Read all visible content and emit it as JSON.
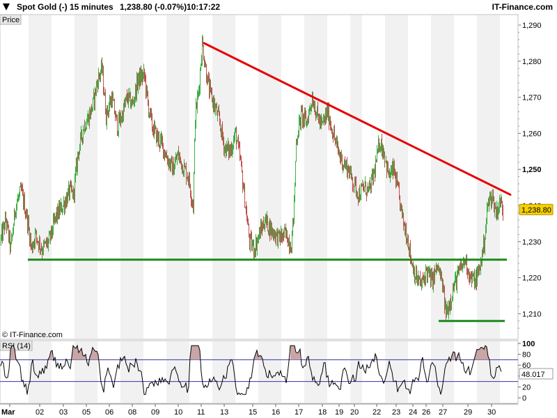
{
  "header": {
    "instrument": "Spot Gold (-)",
    "timeframe": "15 minutes",
    "last_quote": "1,238.80 (-0.07%)",
    "time": "10:17:22",
    "brand": "IT-Finance.com"
  },
  "panels": {
    "price_label": "Price",
    "copyright": "© IT-Finance.com",
    "rsi_label": "RSI (14)"
  },
  "colors": {
    "up_candle": "#3cb043",
    "down_candle": "#c0504d",
    "trendline": "#e60000",
    "support": "#1a8a1a",
    "rsi_line": "#000000",
    "rsi_band": "#3333aa",
    "price_tag": "#f5d000"
  },
  "chart_data": [
    {
      "type": "candlestick",
      "xlabel": "",
      "ylabel": "",
      "ylim": [
        1205,
        1292
      ],
      "y_ticks": [
        "1,290",
        "1,280",
        "1,270",
        "1,260",
        "1,250",
        "1,240",
        "1,230",
        "1,220",
        "1,210"
      ],
      "x_tick_labels": [
        "Mar",
        "02",
        "03",
        "05",
        "06",
        "08",
        "09",
        "10",
        "11",
        "13",
        "15",
        "16",
        "17",
        "18",
        "19",
        "20",
        "22",
        "23",
        "24",
        "26",
        "27",
        "29",
        "30"
      ],
      "last_price_tag": "1,238.80",
      "path_anchors": [
        [
          0,
          1230
        ],
        [
          8,
          1236
        ],
        [
          15,
          1228
        ],
        [
          22,
          1240
        ],
        [
          30,
          1244
        ],
        [
          38,
          1237
        ],
        [
          45,
          1228
        ],
        [
          50,
          1232
        ],
        [
          60,
          1228
        ],
        [
          70,
          1230
        ],
        [
          80,
          1237
        ],
        [
          90,
          1240
        ],
        [
          100,
          1244
        ],
        [
          105,
          1243
        ],
        [
          112,
          1255
        ],
        [
          120,
          1262
        ],
        [
          128,
          1265
        ],
        [
          133,
          1268
        ],
        [
          140,
          1275
        ],
        [
          146,
          1278
        ],
        [
          152,
          1265
        ],
        [
          160,
          1270
        ],
        [
          168,
          1262
        ],
        [
          175,
          1265
        ],
        [
          182,
          1270
        ],
        [
          190,
          1268
        ],
        [
          198,
          1275
        ],
        [
          207,
          1276
        ],
        [
          212,
          1268
        ],
        [
          218,
          1262
        ],
        [
          225,
          1259
        ],
        [
          232,
          1257
        ],
        [
          240,
          1253
        ],
        [
          248,
          1250
        ],
        [
          255,
          1254
        ],
        [
          262,
          1251
        ],
        [
          270,
          1248
        ],
        [
          277,
          1240
        ],
        [
          280,
          1265
        ],
        [
          285,
          1272
        ],
        [
          290,
          1285
        ],
        [
          295,
          1278
        ],
        [
          300,
          1272
        ],
        [
          307,
          1268
        ],
        [
          315,
          1263
        ],
        [
          322,
          1256
        ],
        [
          330,
          1255
        ],
        [
          338,
          1260
        ],
        [
          345,
          1252
        ],
        [
          352,
          1240
        ],
        [
          358,
          1230
        ],
        [
          365,
          1228
        ],
        [
          372,
          1232
        ],
        [
          380,
          1236
        ],
        [
          390,
          1233
        ],
        [
          400,
          1231
        ],
        [
          410,
          1232
        ],
        [
          418,
          1229
        ],
        [
          422,
          1240
        ],
        [
          425,
          1258
        ],
        [
          432,
          1265
        ],
        [
          440,
          1263
        ],
        [
          448,
          1270
        ],
        [
          455,
          1265
        ],
        [
          462,
          1262
        ],
        [
          470,
          1266
        ],
        [
          478,
          1260
        ],
        [
          485,
          1255
        ],
        [
          492,
          1252
        ],
        [
          500,
          1250
        ],
        [
          508,
          1246
        ],
        [
          515,
          1243
        ],
        [
          522,
          1245
        ],
        [
          530,
          1244
        ],
        [
          538,
          1250
        ],
        [
          545,
          1258
        ],
        [
          552,
          1254
        ],
        [
          558,
          1248
        ],
        [
          565,
          1250
        ],
        [
          572,
          1243
        ],
        [
          578,
          1236
        ],
        [
          585,
          1231
        ],
        [
          590,
          1225
        ],
        [
          597,
          1220
        ],
        [
          605,
          1218
        ],
        [
          612,
          1222
        ],
        [
          620,
          1219
        ],
        [
          628,
          1223
        ],
        [
          635,
          1218
        ],
        [
          640,
          1210
        ],
        [
          645,
          1213
        ],
        [
          652,
          1218
        ],
        [
          660,
          1222
        ],
        [
          668,
          1225
        ],
        [
          675,
          1220
        ],
        [
          682,
          1219
        ],
        [
          688,
          1222
        ],
        [
          695,
          1230
        ],
        [
          700,
          1240
        ],
        [
          706,
          1243
        ],
        [
          712,
          1238
        ],
        [
          718,
          1241
        ],
        [
          722,
          1239
        ]
      ],
      "trendline": {
        "from": [
          293,
          1285
        ],
        "to": [
          733,
          1243
        ]
      },
      "support_lines": [
        {
          "from": [
            40,
            1225
          ],
          "to": [
            728,
            1225
          ]
        },
        {
          "from": [
            630,
            1208
          ],
          "to": [
            725,
            1208
          ]
        }
      ]
    },
    {
      "type": "line",
      "name": "RSI (14)",
      "ylim": [
        0,
        100
      ],
      "y_ticks": [
        "100",
        "80",
        "60",
        "40",
        "20",
        "0"
      ],
      "bands": [
        70,
        30
      ],
      "current_value": "48.017"
    }
  ]
}
